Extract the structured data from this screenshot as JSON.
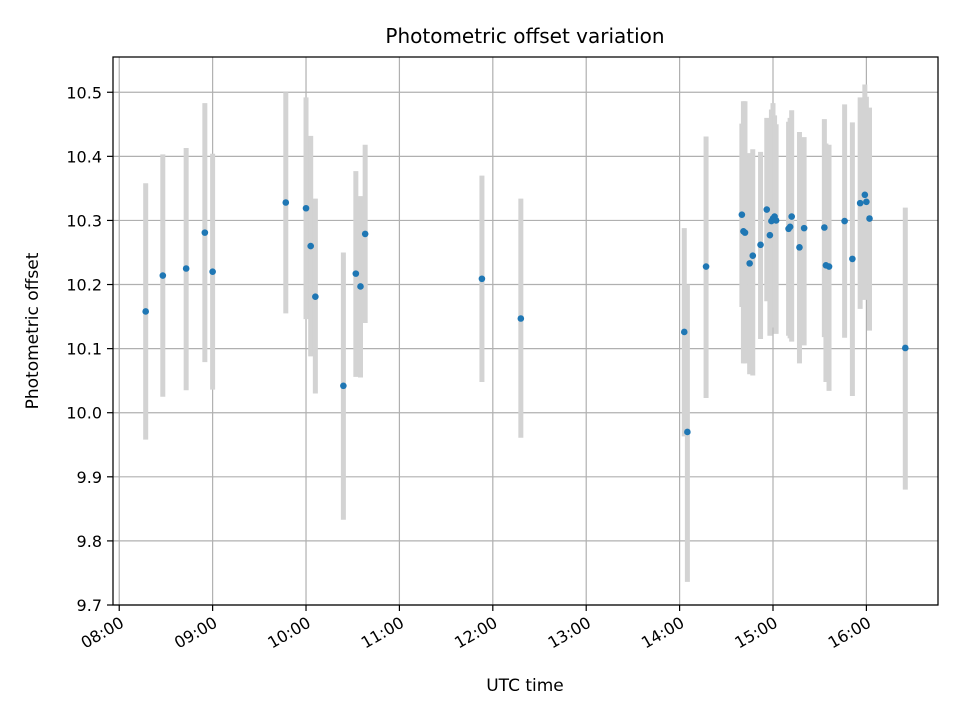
{
  "chart_data": {
    "type": "scatter",
    "title": "Photometric offset variation",
    "xlabel": "UTC time",
    "ylabel": "Photometric offset",
    "x_unit": "UTC clock time (HH:MM)",
    "xlim": [
      "07:56",
      "16:46"
    ],
    "ylim": [
      9.7,
      10.555
    ],
    "x_ticks": [
      "08:00",
      "09:00",
      "10:00",
      "11:00",
      "12:00",
      "13:00",
      "14:00",
      "15:00",
      "16:00"
    ],
    "y_ticks": [
      "9.7",
      "9.8",
      "9.9",
      "10.0",
      "10.1",
      "10.2",
      "10.3",
      "10.4",
      "10.5"
    ],
    "grid": true,
    "colors": {
      "marker": "#1f77b4",
      "errorbar": "#d3d3d3",
      "grid": "#b0b0b0",
      "axes": "#000000"
    },
    "series": [
      {
        "x": [
          "08:17",
          "08:28",
          "08:43",
          "08:55",
          "09:00",
          "09:47",
          "10:00",
          "10:03",
          "10:06",
          "10:24",
          "10:32",
          "10:35",
          "10:38",
          "11:53",
          "12:18",
          "14:03",
          "14:05",
          "14:17",
          "14:40",
          "14:41",
          "14:42",
          "14:45",
          "14:47",
          "14:52",
          "14:56",
          "14:58",
          "14:59",
          "15:00",
          "15:01",
          "15:02",
          "15:10",
          "15:11",
          "15:12",
          "15:17",
          "15:20",
          "15:33",
          "15:34",
          "15:36",
          "15:46",
          "15:51",
          "15:56",
          "15:59",
          "16:00",
          "16:02",
          "16:25"
        ],
        "y": [
          10.158,
          10.214,
          10.225,
          10.281,
          10.22,
          10.328,
          10.319,
          10.26,
          10.181,
          10.042,
          10.217,
          10.197,
          10.279,
          10.209,
          10.147,
          10.126,
          9.97,
          10.228,
          10.309,
          10.283,
          10.281,
          10.233,
          10.245,
          10.262,
          10.317,
          10.277,
          10.299,
          10.303,
          10.306,
          10.3,
          10.287,
          10.29,
          10.306,
          10.258,
          10.288,
          10.289,
          10.23,
          10.228,
          10.299,
          10.24,
          10.327,
          10.34,
          10.329,
          10.303,
          10.101
        ],
        "err_low": [
          9.958,
          10.025,
          10.035,
          10.079,
          10.036,
          10.155,
          10.146,
          10.088,
          10.03,
          9.833,
          10.056,
          10.055,
          10.14,
          10.048,
          9.961,
          9.963,
          9.736,
          10.023,
          10.165,
          10.077,
          10.077,
          10.06,
          10.058,
          10.115,
          10.174,
          10.12,
          10.154,
          10.133,
          10.14,
          10.123,
          10.12,
          10.116,
          10.111,
          10.077,
          10.105,
          10.118,
          10.048,
          10.034,
          10.117,
          10.026,
          10.162,
          10.176,
          10.206,
          10.128,
          9.88
        ],
        "err_high": [
          10.358,
          10.403,
          10.413,
          10.483,
          10.404,
          10.5,
          10.492,
          10.432,
          10.334,
          10.25,
          10.377,
          10.338,
          10.418,
          10.37,
          10.334,
          10.288,
          10.2,
          10.431,
          10.451,
          10.486,
          10.486,
          10.405,
          10.411,
          10.407,
          10.46,
          10.455,
          10.473,
          10.483,
          10.464,
          10.45,
          10.454,
          10.46,
          10.472,
          10.438,
          10.43,
          10.458,
          10.42,
          10.418,
          10.481,
          10.453,
          10.492,
          10.512,
          10.493,
          10.476,
          10.32
        ]
      }
    ]
  }
}
